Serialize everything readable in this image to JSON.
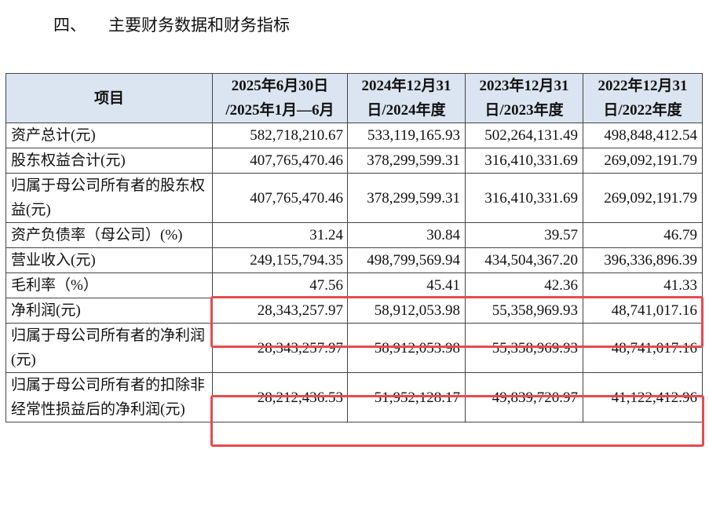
{
  "header": {
    "number": "四、",
    "title": "主要财务数据和财务指标"
  },
  "table": {
    "columns": [
      "项目",
      [
        "2025年6月30日",
        "/2025年1月—6月"
      ],
      [
        "2024年12月31",
        "日/2024年度"
      ],
      [
        "2023年12月31",
        "日/2023年度"
      ],
      [
        "2022年12月31",
        "日/2022年度"
      ]
    ],
    "rows": [
      [
        "资产总计(元)",
        "582,718,210.67",
        "533,119,165.93",
        "502,264,131.49",
        "498,848,412.54"
      ],
      [
        "股东权益合计(元)",
        "407,765,470.46",
        "378,299,599.31",
        "316,410,331.69",
        "269,092,191.79"
      ],
      [
        "归属于母公司所有者的股东权益(元)",
        "407,765,470.46",
        "378,299,599.31",
        "316,410,331.69",
        "269,092,191.79"
      ],
      [
        "资产负债率（母公司）(%)",
        "31.24",
        "30.84",
        "39.57",
        "46.79"
      ],
      [
        "营业收入(元)",
        "249,155,794.35",
        "498,799,569.94",
        "434,504,367.20",
        "396,336,896.39"
      ],
      [
        "毛利率（%）",
        "47.56",
        "45.41",
        "42.36",
        "41.33"
      ],
      [
        "净利润(元)",
        "28,343,257.97",
        "58,912,053.98",
        "55,358,969.93",
        "48,741,017.16"
      ],
      [
        "归属于母公司所有者的净利润(元)",
        "28,343,257.97",
        "58,912,053.98",
        "55,358,969.93",
        "48,741,017.16"
      ],
      [
        "归属于母公司所有者的扣除非经常性损益后的净利润(元)",
        "28,212,436.53",
        "51,952,128.17",
        "49,839,720.97",
        "41,122,412.96"
      ]
    ]
  }
}
